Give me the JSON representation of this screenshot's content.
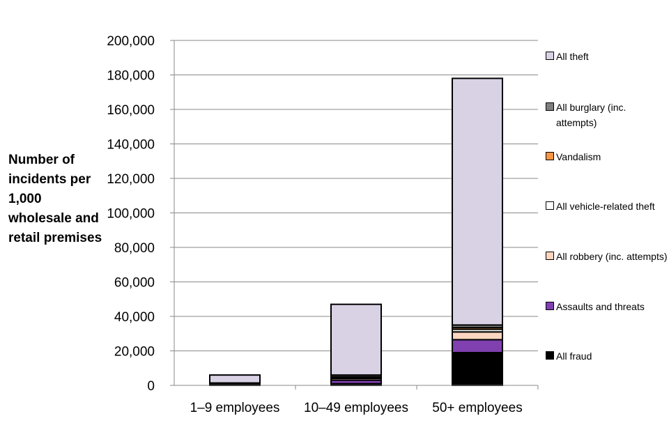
{
  "chart_data": {
    "type": "bar",
    "stacked": true,
    "title": "",
    "xlabel": "",
    "ylabel": "Number of incidents per 1,000 wholesale and retail premises",
    "ylim": [
      0,
      200000
    ],
    "yticks": [
      0,
      20000,
      40000,
      60000,
      80000,
      100000,
      120000,
      140000,
      160000,
      180000,
      200000
    ],
    "ytick_labels": [
      "0",
      "20,000",
      "40,000",
      "60,000",
      "80,000",
      "100,000",
      "120,000",
      "140,000",
      "160,000",
      "180,000",
      "200,000"
    ],
    "grid": true,
    "legend_position": "right",
    "categories": [
      "1–9 employees",
      "10–49 employees",
      "50+ employees"
    ],
    "series": [
      {
        "name": "All fraud",
        "color": "#000000",
        "values": [
          500,
          1000,
          19000
        ]
      },
      {
        "name": "Assaults and threats",
        "color": "#8040b0",
        "values": [
          300,
          2000,
          7500
        ]
      },
      {
        "name": "All robbery (inc. attempts)",
        "color": "#fcd5c0",
        "values": [
          100,
          1000,
          4500
        ]
      },
      {
        "name": "All vehicle-related theft",
        "color": "#ffffff",
        "values": [
          100,
          500,
          1500
        ]
      },
      {
        "name": "Vandalism",
        "color": "#f79646",
        "values": [
          100,
          500,
          1000
        ]
      },
      {
        "name": "All burglary (inc. attempts)",
        "color": "#7f7f7f",
        "values": [
          300,
          1000,
          1500
        ]
      },
      {
        "name": "All theft",
        "color": "#d9d1e4",
        "values": [
          4600,
          41000,
          143000
        ]
      }
    ]
  }
}
